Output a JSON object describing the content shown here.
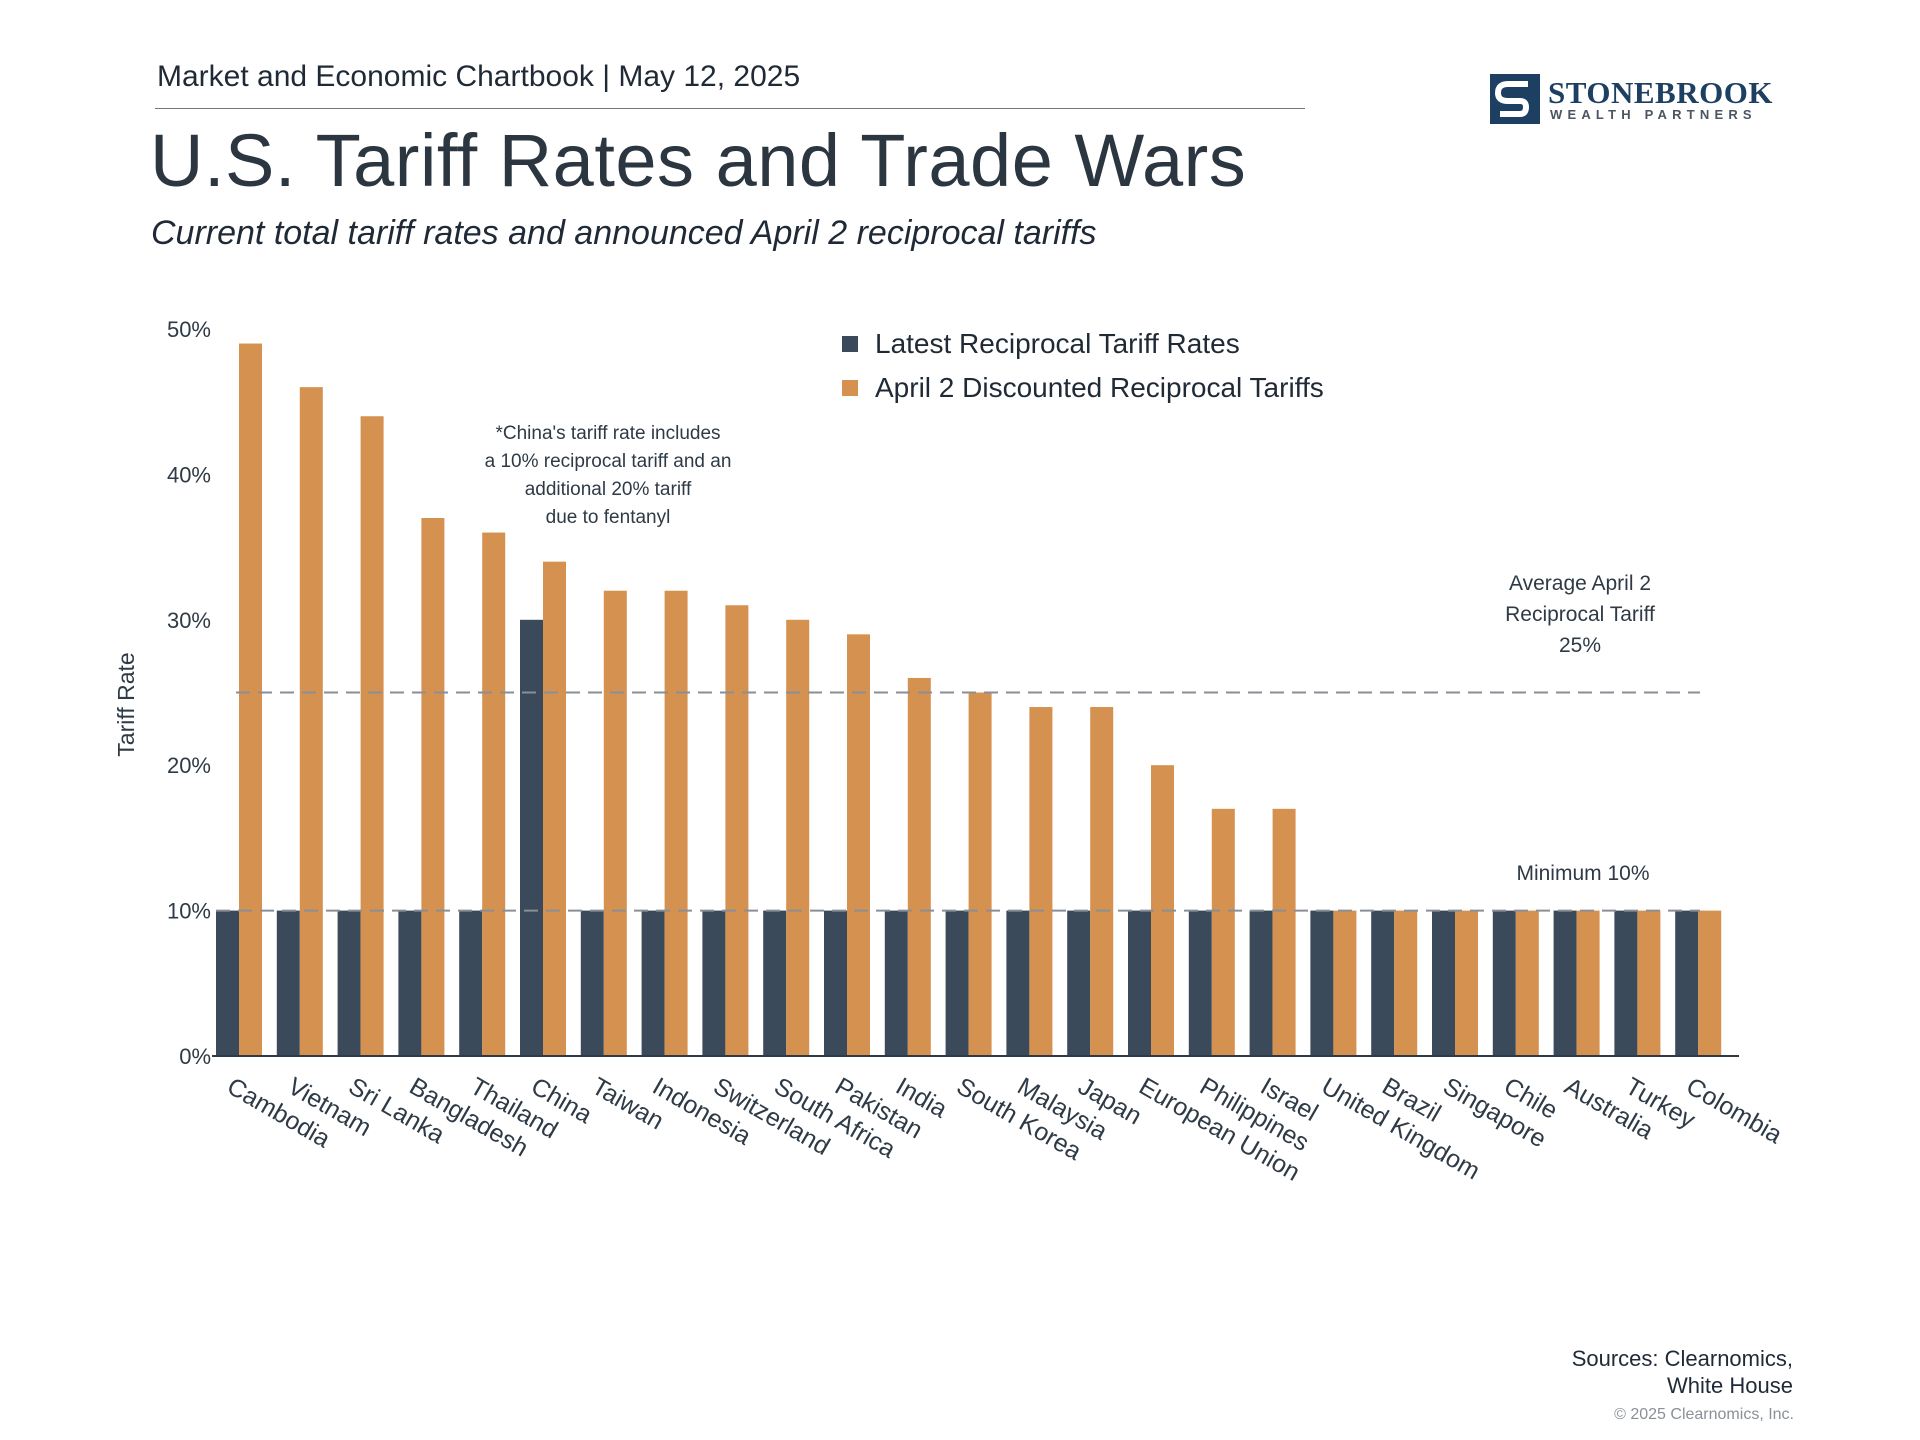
{
  "header": {
    "chartbook": "Market and Economic Chartbook",
    "separator": "|",
    "date": "May 12, 2025"
  },
  "logo": {
    "name": "STONEBROOK",
    "tagline": "WEALTH PARTNERS",
    "mark_icon": "stonebrook-s-mark-icon"
  },
  "title": "U.S. Tariff Rates and Trade Wars",
  "subtitle": "Current total tariff rates and announced April 2 reciprocal tariffs",
  "colors": {
    "latest": "#3a4a5a",
    "april2": "#d4914f",
    "text": "#2e3a46",
    "reference_line": "#8a8f96"
  },
  "chart_data": {
    "type": "bar",
    "ylabel": "Tariff Rate",
    "xlabel": "",
    "ylim": [
      0,
      50
    ],
    "yticks": [
      0,
      10,
      20,
      30,
      40,
      50
    ],
    "ytick_labels": [
      "0%",
      "10%",
      "20%",
      "30%",
      "40%",
      "50%"
    ],
    "legend_position": "top-center",
    "grid": false,
    "categories": [
      "Cambodia",
      "Vietnam",
      "Sri Lanka",
      "Bangladesh",
      "Thailand",
      "China",
      "Taiwan",
      "Indonesia",
      "Switzerland",
      "South Africa",
      "Pakistan",
      "India",
      "South Korea",
      "Malaysia",
      "Japan",
      "European Union",
      "Philippines",
      "Israel",
      "United Kingdom",
      "Brazil",
      "Singapore",
      "Chile",
      "Australia",
      "Turkey",
      "Colombia"
    ],
    "series": [
      {
        "name": "Latest Reciprocal Tariff Rates",
        "values": [
          10,
          10,
          10,
          10,
          10,
          30,
          10,
          10,
          10,
          10,
          10,
          10,
          10,
          10,
          10,
          10,
          10,
          10,
          10,
          10,
          10,
          10,
          10,
          10,
          10
        ]
      },
      {
        "name": "April 2 Discounted Reciprocal Tariffs",
        "values": [
          49,
          46,
          44,
          37,
          36,
          34,
          32,
          32,
          31,
          30,
          29,
          26,
          25,
          24,
          24,
          20,
          17,
          17,
          10,
          10,
          10,
          10,
          10,
          10,
          10
        ]
      }
    ],
    "reference_lines": [
      {
        "value": 25,
        "label": [
          "Average April 2",
          "Reciprocal Tariff",
          "25%"
        ]
      },
      {
        "value": 10,
        "label": [
          "Minimum 10%"
        ]
      }
    ],
    "annotation": [
      "*China's tariff rate includes",
      "a 10% reciprocal tariff and an",
      "additional 20% tariff",
      "due to fentanyl"
    ]
  },
  "footer": {
    "sources_line1": "Sources: Clearnomics,",
    "sources_line2": "White House",
    "copyright": "© 2025 Clearnomics, Inc."
  }
}
